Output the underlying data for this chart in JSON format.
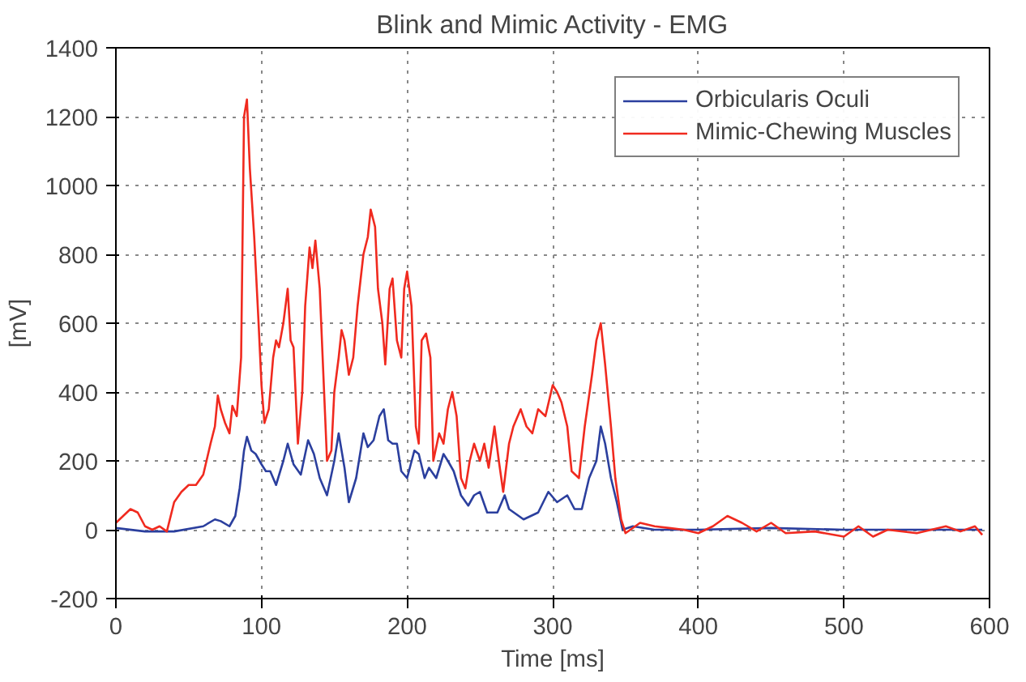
{
  "chart_data": {
    "type": "line",
    "title": "Blink and Mimic Activity - EMG",
    "xlabel": "Time [ms]",
    "ylabel": "[mV]",
    "xlim": [
      0,
      600
    ],
    "ylim": [
      -200,
      1400
    ],
    "xticks": [
      0,
      100,
      200,
      300,
      400,
      500,
      600
    ],
    "yticks": [
      -200,
      0,
      200,
      400,
      600,
      800,
      1000,
      1200,
      1400
    ],
    "grid": true,
    "legend": "top right",
    "line_style": "solid",
    "series": [
      {
        "name": "Orbicularis Oculi",
        "color": "#2b3f9e",
        "x": [
          0,
          20,
          40,
          60,
          68,
          72,
          78,
          82,
          85,
          88,
          90,
          93,
          96,
          100,
          103,
          106,
          110,
          115,
          118,
          122,
          127,
          132,
          136,
          140,
          145,
          150,
          153,
          157,
          160,
          165,
          170,
          173,
          177,
          181,
          184,
          187,
          190,
          193,
          196,
          200,
          205,
          208,
          212,
          215,
          220,
          225,
          228,
          232,
          237,
          242,
          246,
          250,
          255,
          262,
          267,
          270,
          280,
          290,
          297,
          303,
          310,
          315,
          320,
          325,
          330,
          333,
          336,
          340,
          344,
          348,
          355,
          370,
          400,
          450,
          500,
          550,
          595
        ],
        "values": [
          5,
          -5,
          -5,
          10,
          30,
          25,
          10,
          40,
          120,
          230,
          270,
          230,
          220,
          190,
          170,
          170,
          130,
          200,
          250,
          190,
          160,
          260,
          220,
          150,
          100,
          200,
          280,
          180,
          80,
          150,
          280,
          240,
          260,
          330,
          350,
          260,
          250,
          250,
          170,
          150,
          230,
          220,
          150,
          180,
          150,
          220,
          200,
          170,
          100,
          70,
          100,
          110,
          50,
          50,
          100,
          60,
          30,
          50,
          110,
          80,
          100,
          60,
          60,
          150,
          200,
          300,
          250,
          150,
          80,
          0,
          10,
          0,
          0,
          5,
          0,
          0,
          0
        ]
      },
      {
        "name": "Mimic-Chewing Muscles",
        "color": "#f02a1f",
        "x": [
          0,
          5,
          10,
          15,
          20,
          25,
          30,
          35,
          40,
          45,
          50,
          55,
          60,
          65,
          68,
          70,
          72,
          75,
          78,
          80,
          83,
          86,
          88,
          90,
          92,
          95,
          98,
          100,
          102,
          105,
          108,
          110,
          112,
          115,
          118,
          120,
          122,
          125,
          128,
          130,
          133,
          135,
          137,
          140,
          143,
          145,
          148,
          150,
          153,
          155,
          157,
          160,
          163,
          166,
          170,
          173,
          175,
          178,
          180,
          183,
          185,
          188,
          190,
          193,
          196,
          198,
          200,
          203,
          206,
          208,
          210,
          213,
          216,
          218,
          222,
          225,
          228,
          231,
          234,
          237,
          240,
          243,
          246,
          250,
          253,
          256,
          260,
          263,
          266,
          270,
          273,
          278,
          282,
          286,
          290,
          295,
          300,
          303,
          306,
          310,
          313,
          318,
          322,
          327,
          330,
          333,
          336,
          340,
          343,
          347,
          350,
          360,
          370,
          380,
          390,
          400,
          410,
          420,
          430,
          440,
          450,
          460,
          480,
          500,
          510,
          520,
          530,
          550,
          570,
          580,
          590,
          595
        ],
        "values": [
          20,
          40,
          60,
          50,
          10,
          0,
          10,
          -5,
          80,
          110,
          130,
          130,
          160,
          250,
          300,
          390,
          350,
          310,
          280,
          360,
          330,
          500,
          1200,
          1250,
          1050,
          850,
          600,
          420,
          310,
          350,
          500,
          550,
          530,
          600,
          700,
          550,
          530,
          250,
          400,
          650,
          820,
          760,
          840,
          700,
          400,
          200,
          230,
          400,
          500,
          580,
          550,
          450,
          500,
          650,
          800,
          850,
          930,
          880,
          700,
          600,
          480,
          700,
          730,
          550,
          500,
          700,
          750,
          650,
          300,
          250,
          550,
          570,
          500,
          200,
          280,
          250,
          350,
          400,
          330,
          150,
          120,
          200,
          250,
          200,
          250,
          180,
          300,
          200,
          110,
          250,
          300,
          350,
          300,
          280,
          350,
          330,
          420,
          400,
          370,
          300,
          170,
          150,
          300,
          450,
          550,
          600,
          480,
          300,
          150,
          30,
          -10,
          20,
          10,
          5,
          0,
          -10,
          10,
          40,
          20,
          -5,
          20,
          -10,
          -5,
          -20,
          10,
          -20,
          0,
          -10,
          10,
          -5,
          10,
          -15
        ]
      }
    ]
  }
}
